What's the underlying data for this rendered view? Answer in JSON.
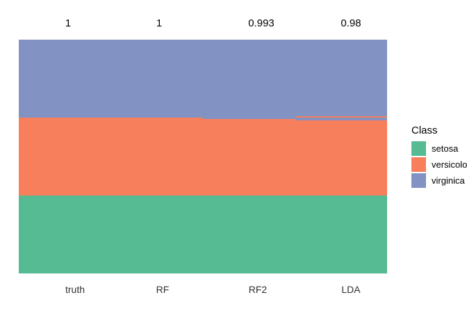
{
  "chart_data": {
    "type": "bar",
    "subtype": "stacked-classification-columns",
    "title": "",
    "xlabel": "",
    "ylabel": "",
    "grid": false,
    "total_observations_per_column": 150,
    "categories": [
      "truth",
      "RF",
      "RF2",
      "LDA"
    ],
    "accuracy_labels": [
      "1",
      "1",
      "0.993",
      "0.98"
    ],
    "classes": [
      "setosa",
      "versicolor",
      "virginica"
    ],
    "colors": {
      "setosa": "#56BA93",
      "versicolor": "#F87F5C",
      "virginica": "#8192C3"
    },
    "columns": [
      {
        "label": "truth",
        "accuracy_label": "1",
        "segments": [
          {
            "class": "virginica",
            "count": 50
          },
          {
            "class": "versicolor",
            "count": 50
          },
          {
            "class": "setosa",
            "count": 50
          }
        ]
      },
      {
        "label": "RF",
        "accuracy_label": "1",
        "segments": [
          {
            "class": "virginica",
            "count": 50
          },
          {
            "class": "versicolor",
            "count": 50
          },
          {
            "class": "setosa",
            "count": 50
          }
        ]
      },
      {
        "label": "RF2",
        "accuracy_label": "0.993",
        "segments": [
          {
            "class": "virginica",
            "count": 51
          },
          {
            "class": "versicolor",
            "count": 49
          },
          {
            "class": "setosa",
            "count": 50
          }
        ]
      },
      {
        "label": "LDA",
        "accuracy_label": "0.98",
        "segments": [
          {
            "class": "virginica",
            "count": 49
          },
          {
            "class": "versicolor",
            "count": 1
          },
          {
            "class": "virginica",
            "count": 2
          },
          {
            "class": "versicolor",
            "count": 48
          },
          {
            "class": "setosa",
            "count": 50
          }
        ]
      }
    ],
    "legend": {
      "title": "Class",
      "position": "right",
      "entries": [
        {
          "class": "setosa",
          "label": "setosa"
        },
        {
          "class": "versicolor",
          "label": "versicolor"
        },
        {
          "class": "virginica",
          "label": "virginica"
        }
      ]
    }
  }
}
